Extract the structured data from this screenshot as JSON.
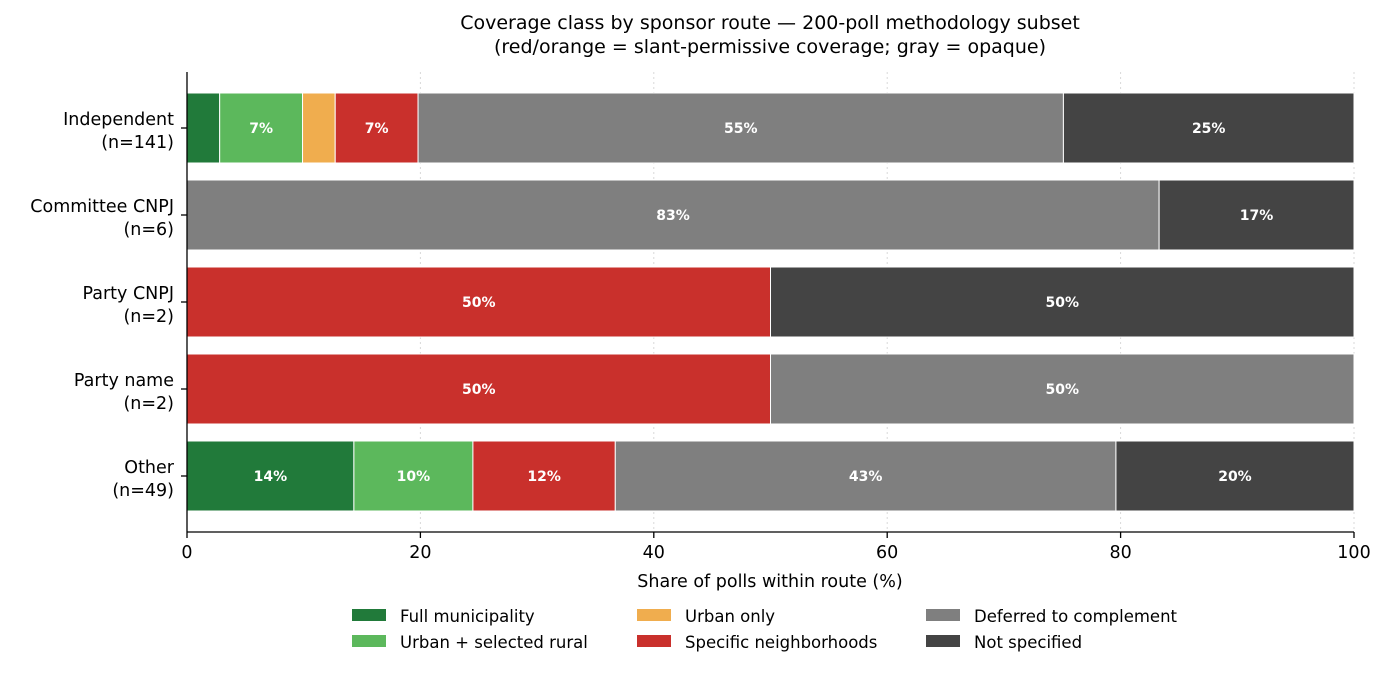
{
  "chart_data": {
    "type": "bar",
    "orientation": "horizontal",
    "stacked": true,
    "title": "Coverage class by sponsor route — 200-poll methodology subset",
    "subtitle": "(red/orange = slant-permissive coverage; gray = opaque)",
    "xlabel": "Share of polls within route (%)",
    "ylabel": "",
    "xlim": [
      0,
      100
    ],
    "xticks": [
      "0",
      "20",
      "40",
      "60",
      "80",
      "100"
    ],
    "grid": "x-dotted",
    "legend_position": "bottom-center",
    "categories": [
      [
        "Independent",
        "(n=141)"
      ],
      [
        "Committee CNPJ",
        "(n=6)"
      ],
      [
        "Party CNPJ",
        "(n=2)"
      ],
      [
        "Party name",
        "(n=2)"
      ],
      [
        "Other",
        "(n=49)"
      ]
    ],
    "series": [
      {
        "name": "Full municipality",
        "color": "#217a3a",
        "values": [
          2.8,
          0,
          0,
          0,
          14.3
        ]
      },
      {
        "name": "Urban + selected rural",
        "color": "#5cb85c",
        "values": [
          7.1,
          0,
          0,
          0,
          10.2
        ]
      },
      {
        "name": "Urban only",
        "color": "#f0ad4e",
        "values": [
          2.8,
          0,
          0,
          0,
          0
        ]
      },
      {
        "name": "Specific neighborhoods",
        "color": "#c9302c",
        "values": [
          7.1,
          0,
          50,
          50,
          12.2
        ]
      },
      {
        "name": "Deferred to complement",
        "color": "#7f7f7f",
        "values": [
          55.3,
          83.3,
          0,
          50,
          42.9
        ]
      },
      {
        "name": "Not specified",
        "color": "#444444",
        "values": [
          24.9,
          16.7,
          50,
          0,
          20.4
        ]
      }
    ],
    "data_labels": [
      [
        "",
        "7%",
        "",
        "7%",
        "55%",
        "25%"
      ],
      [
        "",
        "",
        "",
        "",
        "83%",
        "17%"
      ],
      [
        "",
        "",
        "",
        "50%",
        "",
        "50%"
      ],
      [
        "",
        "",
        "",
        "50%",
        "50%",
        ""
      ],
      [
        "14%",
        "10%",
        "",
        "12%",
        "43%",
        "20%"
      ]
    ]
  }
}
